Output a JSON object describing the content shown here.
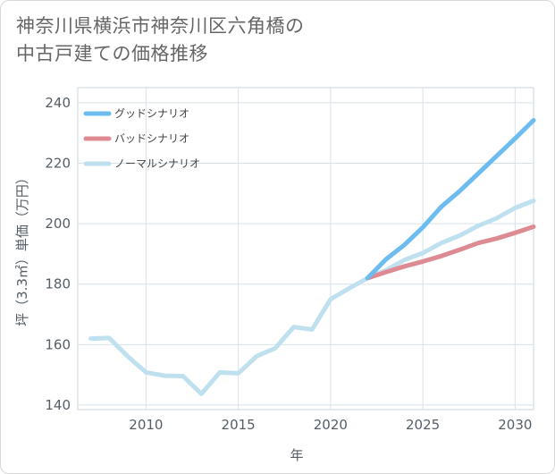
{
  "title_line1": "神奈川県横浜市神奈川区六角橋の",
  "title_line2": "中古戸建ての価格推移",
  "chart_data": {
    "type": "line",
    "title": "神奈川県横浜市神奈川区六角橋の中古戸建ての価格推移",
    "xlabel": "年",
    "ylabel": "坪（3.3㎡）単価（万円）",
    "xlim": [
      2006.3,
      2031
    ],
    "ylim": [
      138.5,
      245
    ],
    "xticks": [
      2010,
      2015,
      2020,
      2025,
      2030
    ],
    "yticks": [
      140,
      160,
      180,
      200,
      220,
      240
    ],
    "legend_position": "top-left",
    "series": [
      {
        "name": "グッドシナリオ",
        "color": "#6cbcef",
        "x": [
          2022,
          2023,
          2024,
          2025,
          2026,
          2027,
          2028,
          2029,
          2030,
          2031
        ],
        "y": [
          182,
          188.2,
          193,
          198.8,
          205.6,
          210.8,
          216.6,
          222.4,
          228.2,
          234.2
        ]
      },
      {
        "name": "バッドシナリオ",
        "color": "#de8a92",
        "x": [
          2022,
          2023,
          2024,
          2025,
          2026,
          2027,
          2028,
          2029,
          2030,
          2031
        ],
        "y": [
          182,
          184,
          185.9,
          187.5,
          189.3,
          191.4,
          193.6,
          195.1,
          197,
          199
        ]
      },
      {
        "name": "ノーマルシナリオ",
        "color": "#bfe0ef",
        "x": [
          2007,
          2008,
          2009,
          2010,
          2011,
          2012,
          2013,
          2014,
          2015,
          2016,
          2017,
          2018,
          2019,
          2020,
          2021,
          2022,
          2023,
          2024,
          2025,
          2026,
          2027,
          2028,
          2029,
          2030,
          2031
        ],
        "y": [
          162,
          162.2,
          156.2,
          150.8,
          149.7,
          149.6,
          143.7,
          150.8,
          150.5,
          156.2,
          158.8,
          165.8,
          165,
          175,
          178.6,
          182,
          184.6,
          188,
          190.3,
          193.6,
          196.1,
          199.3,
          201.8,
          205.2,
          207.6
        ]
      }
    ]
  }
}
